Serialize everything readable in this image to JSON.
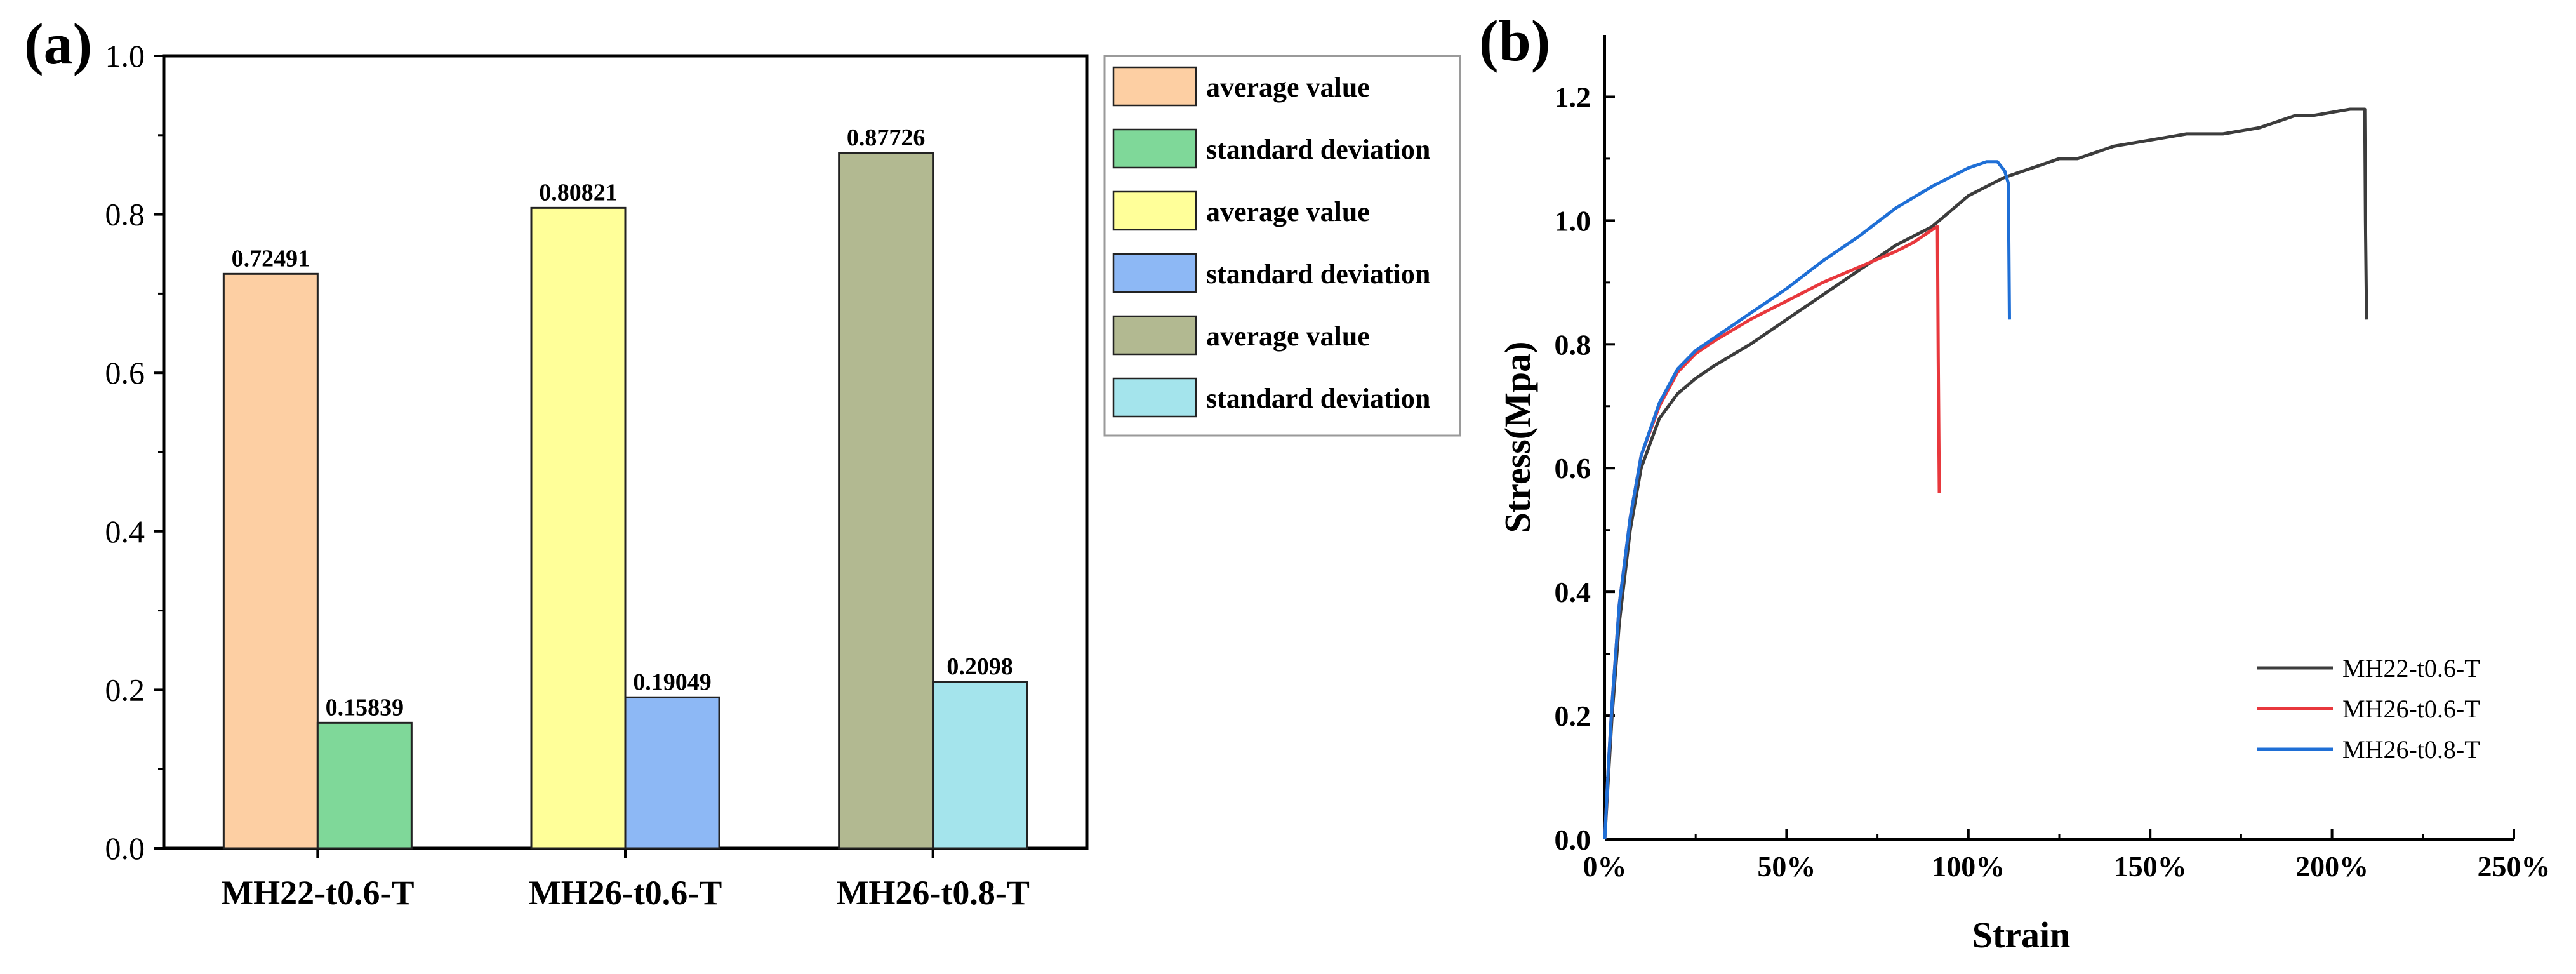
{
  "chart_data": [
    {
      "panel": "(a)",
      "type": "bar",
      "categories": [
        "MH22-t0.6-T",
        "MH26-t0.6-T",
        "MH26-t0.8-T"
      ],
      "ylim": [
        0,
        1.0
      ],
      "yticks": [
        "0.0",
        "0.2",
        "0.4",
        "0.6",
        "0.8",
        "1.0"
      ],
      "series": [
        {
          "group": "MH22-t0.6-T",
          "bars": [
            {
              "name": "average value",
              "value": 0.72491,
              "label": "0.72491",
              "color": "#FDCFA3"
            },
            {
              "name": "standard deviation",
              "value": 0.15839,
              "label": "0.15839",
              "color": "#7FD899"
            }
          ]
        },
        {
          "group": "MH26-t0.6-T",
          "bars": [
            {
              "name": "average value",
              "value": 0.80821,
              "label": "0.80821",
              "color": "#FFFF99"
            },
            {
              "name": "standard deviation",
              "value": 0.19049,
              "label": "0.19049",
              "color": "#8DB8F5"
            }
          ]
        },
        {
          "group": "MH26-t0.8-T",
          "bars": [
            {
              "name": "average value",
              "value": 0.87726,
              "label": "0.87726",
              "color": "#B2B991"
            },
            {
              "name": "standard deviation",
              "value": 0.2098,
              "label": "0.2098",
              "color": "#A4E4EC"
            }
          ]
        }
      ],
      "legend": [
        {
          "label": "average value",
          "color": "#FDCFA3"
        },
        {
          "label": "standard deviation",
          "color": "#7FD899"
        },
        {
          "label": "average value",
          "color": "#FFFF99"
        },
        {
          "label": "standard deviation",
          "color": "#8DB8F5"
        },
        {
          "label": "average value",
          "color": "#B2B991"
        },
        {
          "label": "standard deviation",
          "color": "#A4E4EC"
        }
      ],
      "legend_position": "right"
    },
    {
      "panel": "(b)",
      "type": "line",
      "xlabel": "Strain",
      "ylabel": "Stress(Mpa)",
      "xlim": [
        0,
        250
      ],
      "ylim": [
        0,
        1.3
      ],
      "xticks": [
        0,
        50,
        100,
        150,
        200,
        250
      ],
      "xtick_labels": [
        "0%",
        "50%",
        "100%",
        "150%",
        "200%",
        "250%"
      ],
      "yticks": [
        0,
        0.2,
        0.4,
        0.6,
        0.8,
        1.0,
        1.2
      ],
      "ytick_labels": [
        "0.0",
        "0.2",
        "0.4",
        "0.6",
        "0.8",
        "1.0",
        "1.2"
      ],
      "legend_position": "bottom-right",
      "series": [
        {
          "name": "MH22-t0.6-T",
          "color": "#3C3C3C",
          "x": [
            0,
            1,
            2,
            4,
            7,
            10,
            15,
            20,
            25,
            30,
            40,
            50,
            60,
            70,
            80,
            90,
            100,
            110,
            120,
            125,
            130,
            140,
            150,
            160,
            170,
            180,
            190,
            195,
            200,
            205,
            209,
            209.2,
            209.5
          ],
          "y": [
            0,
            0.1,
            0.2,
            0.35,
            0.5,
            0.6,
            0.68,
            0.72,
            0.745,
            0.765,
            0.8,
            0.84,
            0.88,
            0.92,
            0.96,
            0.99,
            1.04,
            1.07,
            1.09,
            1.1,
            1.1,
            1.12,
            1.13,
            1.14,
            1.14,
            1.15,
            1.17,
            1.17,
            1.175,
            1.18,
            1.18,
            1.0,
            0.84
          ]
        },
        {
          "name": "MH26-t0.6-T",
          "color": "#E8383D",
          "x": [
            0,
            1,
            2,
            4,
            7,
            10,
            15,
            20,
            25,
            30,
            40,
            50,
            60,
            70,
            80,
            85,
            90,
            91.5,
            91.7,
            92
          ],
          "y": [
            0,
            0.12,
            0.22,
            0.38,
            0.52,
            0.62,
            0.7,
            0.755,
            0.785,
            0.805,
            0.84,
            0.87,
            0.9,
            0.925,
            0.95,
            0.965,
            0.985,
            0.99,
            0.78,
            0.56
          ]
        },
        {
          "name": "MH26-t0.8-T",
          "color": "#1F6FD6",
          "x": [
            0,
            1,
            2,
            4,
            7,
            10,
            15,
            20,
            25,
            30,
            40,
            50,
            60,
            70,
            80,
            90,
            100,
            105,
            108,
            110,
            111,
            111.3
          ],
          "y": [
            0,
            0.12,
            0.22,
            0.38,
            0.52,
            0.62,
            0.705,
            0.76,
            0.79,
            0.81,
            0.85,
            0.89,
            0.935,
            0.975,
            1.02,
            1.055,
            1.085,
            1.095,
            1.095,
            1.08,
            1.06,
            0.84
          ]
        }
      ]
    }
  ]
}
